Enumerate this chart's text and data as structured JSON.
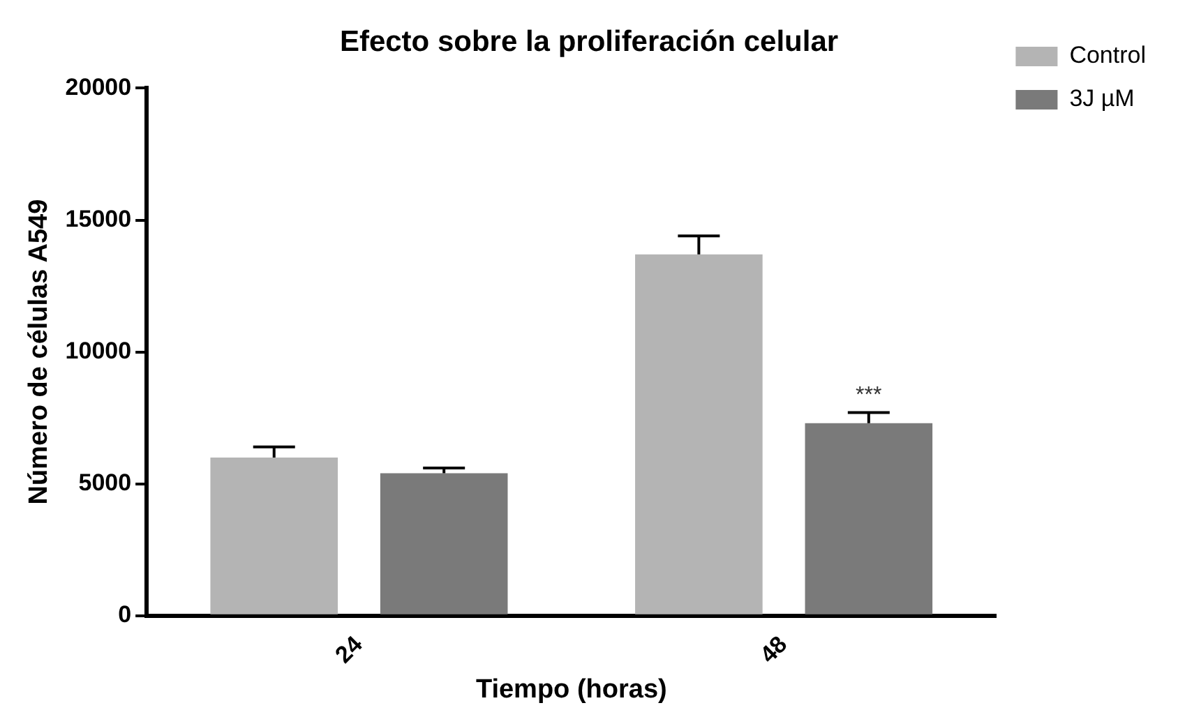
{
  "chart_data": {
    "type": "bar",
    "title": "Efecto sobre la proliferación celular",
    "xlabel": "Tiempo (horas)",
    "ylabel": "Número de células A549",
    "categories": [
      "24",
      "48"
    ],
    "series": [
      {
        "name": "Control",
        "color": "#b4b4b4",
        "values": [
          6000,
          13700
        ],
        "errors": [
          400,
          700
        ]
      },
      {
        "name": "3J µM",
        "color": "#7a7a7a",
        "values": [
          5400,
          7300
        ],
        "errors": [
          200,
          400
        ]
      }
    ],
    "ylim": [
      0,
      20000
    ],
    "yticks": [
      0,
      5000,
      10000,
      15000,
      20000
    ],
    "grid": false,
    "legend": "top right",
    "annotations": [
      "***"
    ]
  }
}
